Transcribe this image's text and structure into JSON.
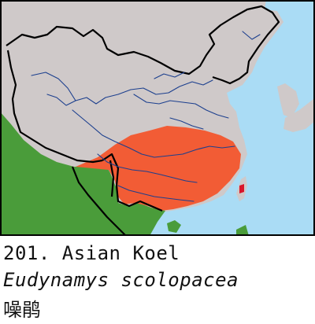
{
  "map": {
    "colors": {
      "sea": "#aadcf5",
      "land_other": "#cfc9c9",
      "range_green": "#4a9c3a",
      "range_orange": "#f25c35",
      "range_red": "#d9152a",
      "border": "#000000",
      "river": "#1c3f8e"
    }
  },
  "caption": {
    "title": "201. Asian Koel",
    "scientific_name": "Eudynamys scolopacea",
    "chinese_name": "噪鹃"
  }
}
